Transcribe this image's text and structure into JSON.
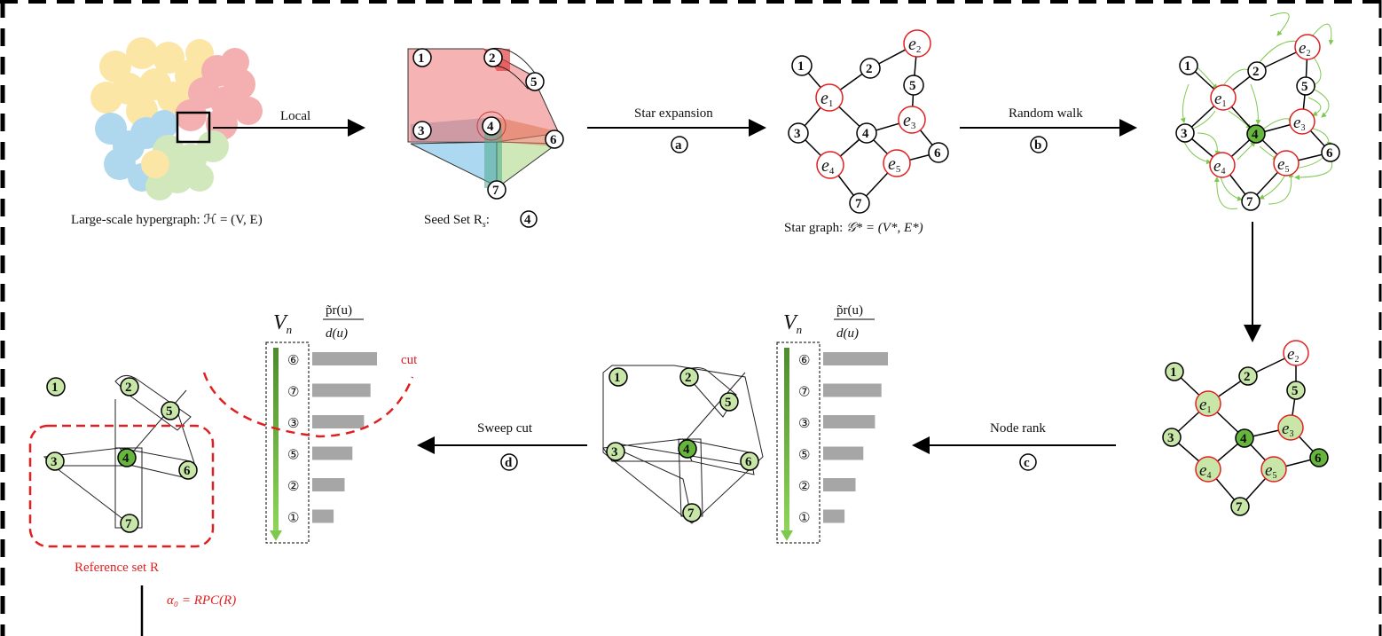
{
  "panels": {
    "hypergraph": {
      "caption": "Large-scale hypergraph: ℋ = (V, E)"
    },
    "seed": {
      "caption": "Seed Set R",
      "subscript": "s",
      "suffix": ":",
      "seed_node": "4"
    },
    "star": {
      "caption_prefix": "Star graph: ",
      "caption_math": "𝒢* = (V*, E*)"
    },
    "reference": {
      "caption": "Reference set R",
      "alpha_label": "α₀ = RPC(R)"
    }
  },
  "arrows": {
    "local": {
      "label": "Local"
    },
    "star_expansion": {
      "label": "Star expansion",
      "step": "a"
    },
    "random_walk": {
      "label": "Random walk",
      "step": "b"
    },
    "node_rank": {
      "label": "Node rank",
      "step": "c"
    },
    "sweep_cut": {
      "label": "Sweep cut",
      "step": "d"
    }
  },
  "nodes": [
    "1",
    "2",
    "3",
    "4",
    "5",
    "6",
    "7"
  ],
  "hyperedges": [
    "e1",
    "e2",
    "e3",
    "e4",
    "e5"
  ],
  "ranking": {
    "column_label": "V",
    "column_sub": "n",
    "score_num": "p̃r(u)",
    "score_den": "d(u)",
    "cut_label": "cut",
    "order": [
      "⑥",
      "⑦",
      "③",
      "⑤",
      "②",
      "①"
    ],
    "scores": [
      1.0,
      0.9,
      0.8,
      0.62,
      0.5,
      0.33
    ]
  },
  "colors": {
    "node_light_green": "#c8e6a8",
    "node_green": "#66b53c",
    "hyperedge_red": "#e02020",
    "arrow_green": "#7ec850",
    "bar_gray": "#a6a6a6",
    "cut_red": "#e02020"
  }
}
